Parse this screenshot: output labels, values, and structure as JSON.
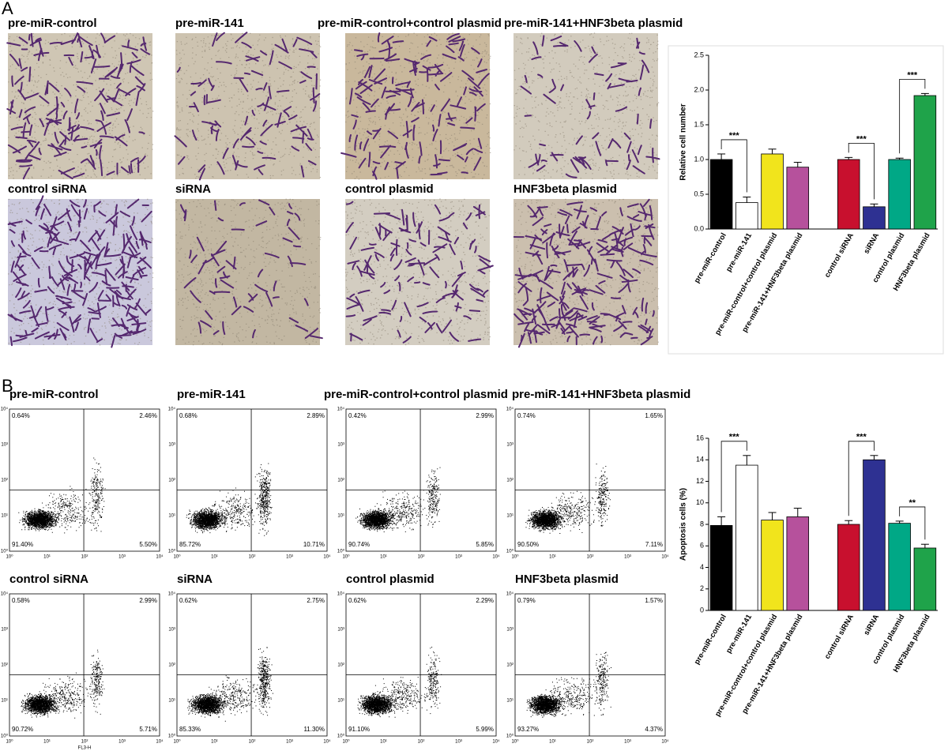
{
  "panel_a": {
    "label": "A",
    "images": [
      "pre-miR-control",
      "pre-miR-141",
      "pre-miR-control+control plasmid",
      "pre-miR-141+HNF3beta plasmid",
      "control siRNA",
      "siRNA",
      "control plasmid",
      "HNF3beta plasmid"
    ]
  },
  "panel_b": {
    "label": "B",
    "x_axis_label": "FL3-H",
    "axis_ticks": [
      "10⁰",
      "10¹",
      "10²",
      "10³",
      "10⁴"
    ],
    "plots": [
      {
        "label": "pre-miR-control",
        "quadrants": [
          "0.64%",
          "2.46%",
          "91.40%",
          "5.50%"
        ]
      },
      {
        "label": "pre-miR-141",
        "quadrants": [
          "0.68%",
          "2.89%",
          "85.72%",
          "10.71%"
        ]
      },
      {
        "label": "pre-miR-control+control plasmid",
        "quadrants": [
          "0.42%",
          "2.99%",
          "90.74%",
          "5.85%"
        ]
      },
      {
        "label": "pre-miR-141+HNF3beta plasmid",
        "quadrants": [
          "0.74%",
          "1.65%",
          "90.50%",
          "7.11%"
        ]
      },
      {
        "label": "control siRNA",
        "quadrants": [
          "0.58%",
          "2.99%",
          "90.72%",
          "5.71%"
        ]
      },
      {
        "label": "siRNA",
        "quadrants": [
          "0.62%",
          "2.75%",
          "85.33%",
          "11.30%"
        ]
      },
      {
        "label": "control plasmid",
        "quadrants": [
          "0.62%",
          "2.29%",
          "91.10%",
          "5.99%"
        ]
      },
      {
        "label": "HNF3beta plasmid",
        "quadrants": [
          "0.79%",
          "1.57%",
          "93.27%",
          "4.37%"
        ]
      }
    ]
  },
  "chart_data": [
    {
      "type": "bar",
      "y_label": "Relative cell number",
      "categories": [
        "pre-miR-control",
        "pre-miR-141",
        "pre-miR-control+control plasmid",
        "pre-miR-141+HNF3beta plasmid",
        null,
        "control siRNA",
        "siRNA",
        "control plasmid",
        "HNF3beta plasmid"
      ],
      "values": [
        1.0,
        0.38,
        1.08,
        0.89,
        null,
        1.0,
        0.32,
        1.0,
        1.92
      ],
      "errors": [
        0.08,
        0.08,
        0.07,
        0.07,
        null,
        0.03,
        0.04,
        0.02,
        0.03
      ],
      "colors": [
        "#000000",
        "#ffffff",
        "#f1e41c",
        "#b6519c",
        null,
        "#c8102e",
        "#2e3192",
        "#00a886",
        "#1fa34a"
      ],
      "ylim": [
        0,
        2.5
      ],
      "yticks": [
        {
          "value": 0,
          "label": "0.0"
        },
        0.5,
        {
          "value": 1,
          "label": "1.0"
        },
        1.5,
        {
          "value": 2,
          "label": "2.0"
        },
        2.5
      ],
      "annotations": [
        {
          "label": "***",
          "between": [
            "pre-miR-control",
            "pre-miR-141"
          ]
        },
        {
          "label": "***",
          "between": [
            "control siRNA",
            "siRNA"
          ]
        },
        {
          "label": "***",
          "between": [
            "control plasmid",
            "HNF3beta plasmid"
          ]
        }
      ]
    },
    {
      "type": "bar",
      "y_label": "Apoptosis cells (%)",
      "categories": [
        "pre-miR-control",
        "pre-miR-141",
        "pre-miR-control+control plasmid",
        "pre-miR-141+HNF3beta plasmid",
        null,
        "control siRNA",
        "siRNA",
        "control plasmid",
        "HNF3beta plasmid"
      ],
      "values": [
        7.9,
        13.5,
        8.4,
        8.7,
        null,
        8.0,
        14.0,
        8.1,
        5.8
      ],
      "errors": [
        0.8,
        0.9,
        0.7,
        0.8,
        null,
        0.35,
        0.4,
        0.2,
        0.35
      ],
      "colors": [
        "#000000",
        "#ffffff",
        "#f1e41c",
        "#b6519c",
        null,
        "#c8102e",
        "#2e3192",
        "#00a886",
        "#1fa34a"
      ],
      "ylim": [
        0,
        16
      ],
      "yticks": [
        0,
        2,
        4,
        6,
        8,
        10,
        12,
        14,
        16
      ],
      "annotations": [
        {
          "label": "***",
          "between": [
            "pre-miR-control",
            "pre-miR-141"
          ]
        },
        {
          "label": "***",
          "between": [
            "control siRNA",
            "siRNA"
          ]
        },
        {
          "label": "**",
          "between": [
            "control plasmid",
            "HNF3beta plasmid"
          ]
        }
      ]
    }
  ]
}
